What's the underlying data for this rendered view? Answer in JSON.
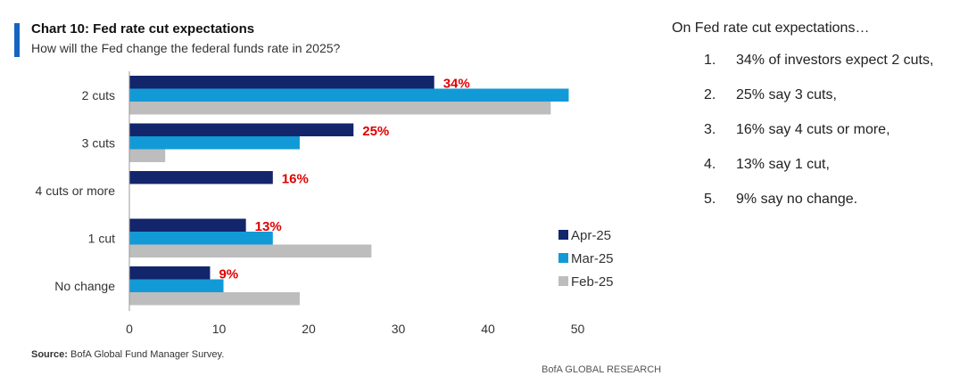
{
  "header": {
    "title": "Chart 10: Fed rate cut expectations",
    "subtitle": "How will the Fed change the federal funds rate in 2025?"
  },
  "colors": {
    "accent": "#1565c0",
    "label_red": "#e00000"
  },
  "chart_data": {
    "type": "bar",
    "orientation": "horizontal",
    "categories": [
      "2 cuts",
      "3 cuts",
      "4 cuts or more",
      "1 cut",
      "No change"
    ],
    "series": [
      {
        "name": "Apr-25",
        "color": "#13256b",
        "values": [
          34,
          25,
          16,
          13,
          9
        ]
      },
      {
        "name": "Mar-25",
        "color": "#129ad7",
        "values": [
          49,
          19,
          0,
          16,
          10.5
        ]
      },
      {
        "name": "Feb-25",
        "color": "#bdbdbd",
        "values": [
          47,
          4,
          0,
          27,
          19
        ]
      }
    ],
    "data_labels": [
      "34%",
      "25%",
      "16%",
      "13%",
      "9%"
    ],
    "xlim": [
      0,
      50
    ],
    "xticks": [
      "0",
      "10",
      "20",
      "30",
      "40",
      "50"
    ],
    "legend_position": "right",
    "grid": false
  },
  "footer": {
    "source_label": "Source:",
    "source_text": "BofA Global Fund Manager Survey.",
    "brand": "BofA GLOBAL RESEARCH"
  },
  "notes": {
    "heading": "On Fed rate cut expectations…",
    "items": [
      {
        "num": "1.",
        "text": "34% of investors expect 2 cuts,"
      },
      {
        "num": "2.",
        "text": "25% say 3 cuts,"
      },
      {
        "num": "3.",
        "text": "16% say 4 cuts or more,"
      },
      {
        "num": "4.",
        "text": "13% say 1 cut,"
      },
      {
        "num": "5.",
        "text": "9% say no change."
      }
    ]
  }
}
